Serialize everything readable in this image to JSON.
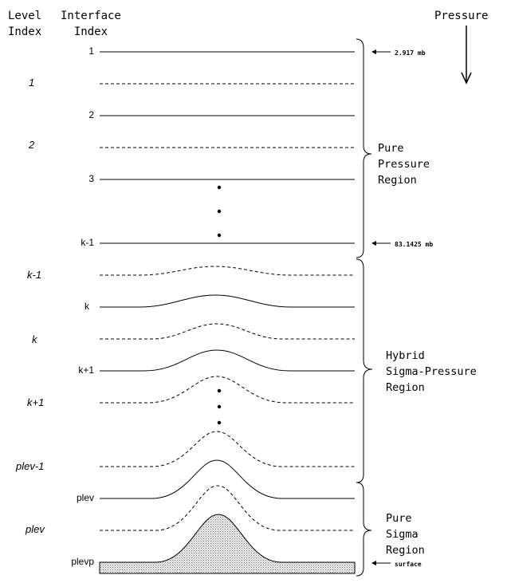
{
  "headers": {
    "level": "Level\nIndex",
    "interface": "Interface\n  Index",
    "pressure": "Pressure"
  },
  "interfaces": [
    {
      "label": "1"
    },
    {
      "label": "2"
    },
    {
      "label": "3"
    },
    {
      "label": "k-1"
    },
    {
      "label": "k"
    },
    {
      "label": "k+1"
    },
    {
      "label": "plev"
    },
    {
      "label": "plevp"
    }
  ],
  "levels": [
    {
      "label": "1"
    },
    {
      "label": "2"
    },
    {
      "label": "k-1"
    },
    {
      "label": "k"
    },
    {
      "label": "k+1"
    },
    {
      "label": "plev-1"
    },
    {
      "label": "plev"
    }
  ],
  "regions": [
    {
      "name": "pure-pressure",
      "lines": [
        "Pure",
        "Pressure",
        "Region"
      ]
    },
    {
      "name": "hybrid",
      "lines": [
        "Hybrid",
        "Sigma-Pressure",
        "Region"
      ]
    },
    {
      "name": "pure-sigma",
      "lines": [
        "Pure",
        "Sigma",
        "Region"
      ]
    }
  ],
  "annotations": {
    "top_pressure": "2.917 mb",
    "mid_pressure": "83.1425 mb",
    "surface": "surface"
  },
  "colors": {
    "line": "#000000",
    "terrain_fill": "#d9d9d9"
  }
}
